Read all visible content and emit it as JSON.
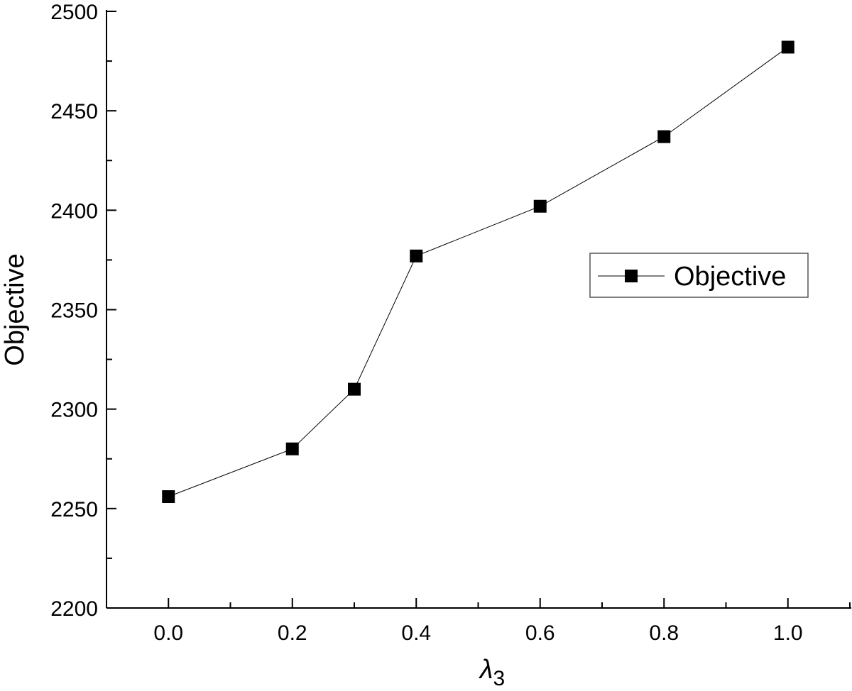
{
  "chart_data": {
    "type": "line",
    "title": "",
    "xlabel_main": "λ",
    "xlabel_sub": "3",
    "ylabel": "Objective",
    "xlim": [
      -0.1,
      1.1
    ],
    "ylim": [
      2200,
      2500
    ],
    "x_ticks": [
      "0.0",
      "0.2",
      "0.4",
      "0.6",
      "0.8",
      "1.0"
    ],
    "x_tick_values": [
      0.0,
      0.2,
      0.4,
      0.6,
      0.8,
      1.0
    ],
    "x_minor_ticks": [
      -0.1,
      0.1,
      0.3,
      0.5,
      0.7,
      0.9,
      1.1
    ],
    "y_ticks": [
      "2200",
      "2250",
      "2300",
      "2350",
      "2400",
      "2450",
      "2500"
    ],
    "y_tick_values": [
      2200,
      2250,
      2300,
      2350,
      2400,
      2450,
      2500
    ],
    "y_minor_ticks": [
      2225,
      2275,
      2325,
      2375,
      2425,
      2475
    ],
    "grid": false,
    "legend_position": "right",
    "series": [
      {
        "name": "Objective",
        "marker": "square",
        "color": "#000000",
        "x": [
          0.0,
          0.2,
          0.3,
          0.4,
          0.6,
          0.8,
          1.0
        ],
        "y": [
          2256,
          2280,
          2310,
          2377,
          2402,
          2437,
          2482
        ]
      }
    ]
  }
}
